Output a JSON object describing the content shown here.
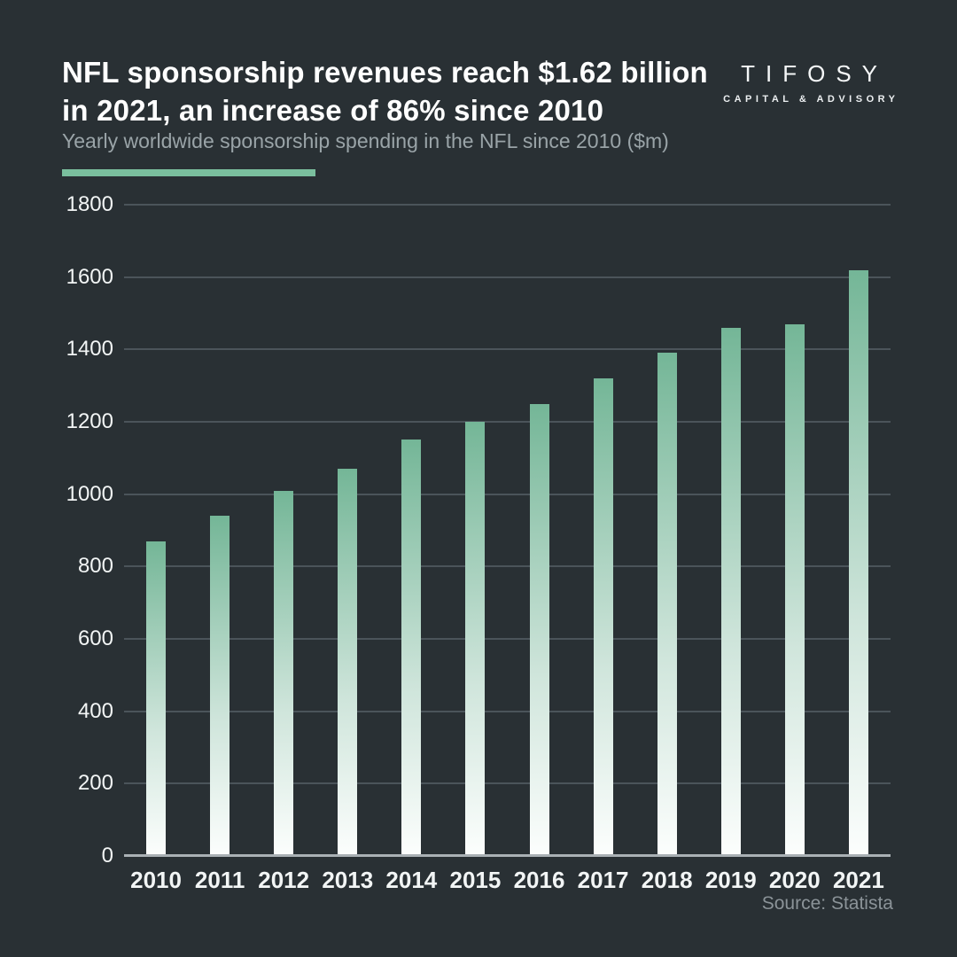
{
  "header": {
    "title": "NFL sponsorship revenues reach $1.62 billion in 2021, an increase of 86% since 2010",
    "subtitle": "Yearly worldwide sponsorship spending in the NFL since 2010 ($m)"
  },
  "logo": {
    "wordmark": "TIFOSY",
    "tagline": "CAPITAL & ADVISORY"
  },
  "footer": {
    "source": "Source: Statista"
  },
  "colors": {
    "background": "#293034",
    "title": "#ffffff",
    "subtitle": "#9aa4a8",
    "accent": "#7abf9e",
    "bar_top": "#74b697",
    "bar_bottom": "#fcfefd",
    "gridline": "#4b545a",
    "baseline": "#a9b0b4",
    "axis_label": "#f2f5f5",
    "source": "#8b9398"
  },
  "chart_data": {
    "type": "bar",
    "title": "NFL sponsorship revenues reach $1.62 billion in 2021, an increase of 86% since 2010",
    "subtitle": "Yearly worldwide sponsorship spending in the NFL since 2010 ($m)",
    "categories": [
      "2010",
      "2011",
      "2012",
      "2013",
      "2014",
      "2015",
      "2016",
      "2017",
      "2018",
      "2019",
      "2020",
      "2021"
    ],
    "values": [
      870,
      940,
      1010,
      1070,
      1150,
      1200,
      1250,
      1320,
      1390,
      1460,
      1470,
      1620
    ],
    "xlabel": "",
    "ylabel": "",
    "ylim": [
      0,
      1800
    ],
    "ytick_step": 200,
    "grid": true,
    "legend": "none"
  }
}
